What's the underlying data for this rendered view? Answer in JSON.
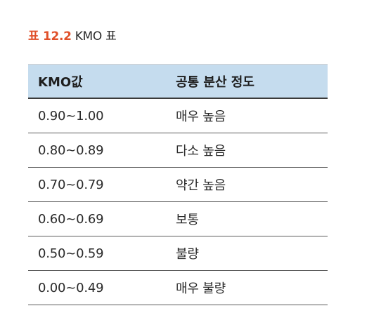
{
  "caption": {
    "label": "표 12.2",
    "text": "KMO 표"
  },
  "table": {
    "headers": [
      "KMO값",
      "공통 분산 정도"
    ],
    "rows": [
      [
        "0.90~1.00",
        "매우 높음"
      ],
      [
        "0.80~0.89",
        "다소 높음"
      ],
      [
        "0.70~0.79",
        "약간 높음"
      ],
      [
        "0.60~0.69",
        "보통"
      ],
      [
        "0.50~0.59",
        "불량"
      ],
      [
        "0.00~0.49",
        "매우 불량"
      ]
    ]
  },
  "colors": {
    "caption_label": "#e0502a",
    "header_background": "#c5dcee",
    "text": "#2a2a2a"
  }
}
